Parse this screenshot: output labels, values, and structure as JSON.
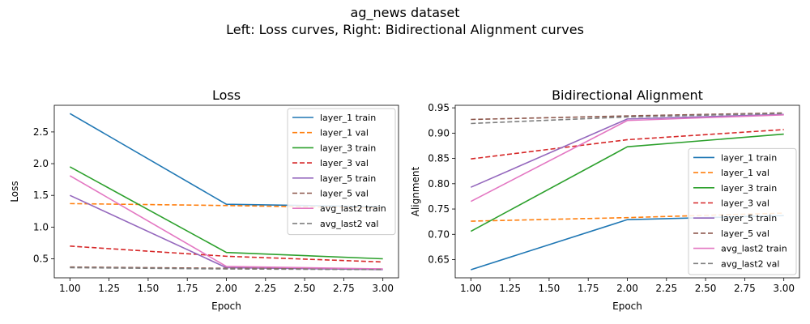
{
  "figure": {
    "title": "ag_news dataset",
    "subtitle": "Left: Loss curves, Right: Bidirectional Alignment curves"
  },
  "chart_data": [
    {
      "type": "line",
      "title": "Loss",
      "xlabel": "Epoch",
      "ylabel": "Loss",
      "xlim": [
        0.9,
        3.1
      ],
      "ylim": [
        0.2,
        2.92
      ],
      "xticks": [
        "1.00",
        "1.25",
        "1.50",
        "1.75",
        "2.00",
        "2.25",
        "2.50",
        "2.75",
        "3.00"
      ],
      "yticks": [
        "0.5",
        "1.0",
        "1.5",
        "2.0",
        "2.5"
      ],
      "legend": "top-right",
      "grid": false,
      "x": [
        1,
        2,
        3
      ],
      "series": [
        {
          "name": "layer_1 train",
          "values": [
            2.79,
            1.36,
            1.32
          ],
          "color": "#1f77b4",
          "dash": "solid"
        },
        {
          "name": "layer_1 val",
          "values": [
            1.37,
            1.34,
            1.3
          ],
          "color": "#ff7f0e",
          "dash": "dashed"
        },
        {
          "name": "layer_3 train",
          "values": [
            1.95,
            0.6,
            0.5
          ],
          "color": "#2ca02c",
          "dash": "solid"
        },
        {
          "name": "layer_3 val",
          "values": [
            0.7,
            0.54,
            0.45
          ],
          "color": "#d62728",
          "dash": "dashed"
        },
        {
          "name": "layer_5 train",
          "values": [
            1.5,
            0.36,
            0.33
          ],
          "color": "#9467bd",
          "dash": "solid"
        },
        {
          "name": "layer_5 val",
          "values": [
            0.37,
            0.35,
            0.34
          ],
          "color": "#8c564b",
          "dash": "dashed"
        },
        {
          "name": "avg_last2 train",
          "values": [
            1.81,
            0.38,
            0.34
          ],
          "color": "#e377c2",
          "dash": "solid"
        },
        {
          "name": "avg_last2 val",
          "values": [
            0.36,
            0.34,
            0.33
          ],
          "color": "#7f7f7f",
          "dash": "dashed"
        }
      ]
    },
    {
      "type": "line",
      "title": "Bidirectional Alignment",
      "xlabel": "Epoch",
      "ylabel": "Alignment",
      "xlim": [
        0.9,
        3.1
      ],
      "ylim": [
        0.614,
        0.955
      ],
      "xticks": [
        "1.00",
        "1.25",
        "1.50",
        "1.75",
        "2.00",
        "2.25",
        "2.50",
        "2.75",
        "3.00"
      ],
      "yticks": [
        "0.65",
        "0.70",
        "0.75",
        "0.80",
        "0.85",
        "0.90",
        "0.95"
      ],
      "legend": "lower-right",
      "grid": false,
      "x": [
        1,
        2,
        3
      ],
      "series": [
        {
          "name": "layer_1 train",
          "values": [
            0.63,
            0.729,
            0.737
          ],
          "color": "#1f77b4",
          "dash": "solid"
        },
        {
          "name": "layer_1 val",
          "values": [
            0.726,
            0.733,
            0.742
          ],
          "color": "#ff7f0e",
          "dash": "dashed"
        },
        {
          "name": "layer_3 train",
          "values": [
            0.706,
            0.873,
            0.898
          ],
          "color": "#2ca02c",
          "dash": "solid"
        },
        {
          "name": "layer_3 val",
          "values": [
            0.849,
            0.887,
            0.907
          ],
          "color": "#d62728",
          "dash": "dashed"
        },
        {
          "name": "layer_5 train",
          "values": [
            0.793,
            0.928,
            0.937
          ],
          "color": "#9467bd",
          "dash": "solid"
        },
        {
          "name": "layer_5 val",
          "values": [
            0.927,
            0.934,
            0.94
          ],
          "color": "#8c564b",
          "dash": "dashed"
        },
        {
          "name": "avg_last2 train",
          "values": [
            0.765,
            0.925,
            0.936
          ],
          "color": "#e377c2",
          "dash": "solid"
        },
        {
          "name": "avg_last2 val",
          "values": [
            0.919,
            0.932,
            0.939
          ],
          "color": "#7f7f7f",
          "dash": "dashed"
        }
      ]
    }
  ]
}
